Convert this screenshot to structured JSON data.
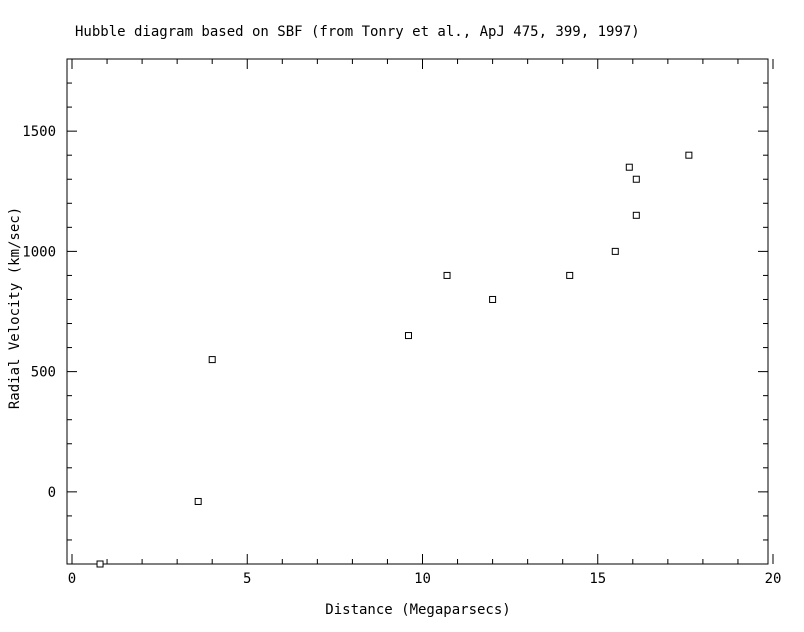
{
  "chart_data": {
    "type": "scatter",
    "title": "Hubble diagram based on SBF (from Tonry et al., ApJ 475, 399, 1997)",
    "xlabel": "Distance (Megaparsecs)",
    "ylabel": "Radial Velocity (km/sec)",
    "xlim": [
      0,
      20
    ],
    "ylim": [
      -300,
      1800
    ],
    "x_ticks": [
      0,
      5,
      10,
      15,
      20
    ],
    "y_ticks": [
      0,
      500,
      1000,
      1500
    ],
    "x_tick_labels": [
      "0",
      "5",
      "10",
      "15",
      "20"
    ],
    "y_tick_labels": [
      "0",
      "500",
      "1000",
      "1500"
    ],
    "grid": false,
    "series": [
      {
        "marker": "open-square",
        "points": [
          {
            "x": 0.8,
            "y": -300
          },
          {
            "x": 3.6,
            "y": -40
          },
          {
            "x": 4.0,
            "y": 550
          },
          {
            "x": 9.6,
            "y": 650
          },
          {
            "x": 10.7,
            "y": 900
          },
          {
            "x": 12.0,
            "y": 800
          },
          {
            "x": 14.2,
            "y": 900
          },
          {
            "x": 15.5,
            "y": 1000
          },
          {
            "x": 15.9,
            "y": 1350
          },
          {
            "x": 16.1,
            "y": 1300
          },
          {
            "x": 16.1,
            "y": 1150
          },
          {
            "x": 17.6,
            "y": 1400
          }
        ]
      }
    ]
  }
}
